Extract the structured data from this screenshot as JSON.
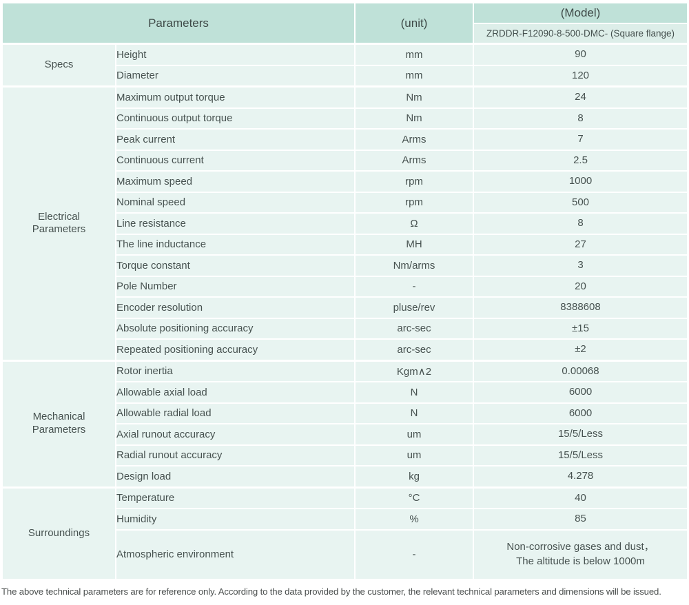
{
  "colors": {
    "header_bg": "#bfe1d8",
    "subheader_bg": "#ddeee9",
    "row_bg": "#e8f4f1",
    "separator": "#ffffff",
    "text": "#475250"
  },
  "table": {
    "header": {
      "parameters_label": "Parameters",
      "unit_label": "(unit)",
      "model_label": "(Model)",
      "model_value": "ZRDDR-F12090-8-500-DMC- (Square flange)"
    },
    "sections": [
      {
        "group": "Specs",
        "rows": [
          {
            "parameter": "Height",
            "unit": "mm",
            "value": "90"
          },
          {
            "parameter": "Diameter",
            "unit": "mm",
            "value": "120"
          }
        ]
      },
      {
        "group": "Electrical\nParameters",
        "rows": [
          {
            "parameter": "Maximum output torque",
            "unit": "Nm",
            "value": "24"
          },
          {
            "parameter": "Continuous output torque",
            "unit": "Nm",
            "value": "8"
          },
          {
            "parameter": "Peak current",
            "unit": "Arms",
            "value": "7"
          },
          {
            "parameter": "Continuous current",
            "unit": "Arms",
            "value": "2.5"
          },
          {
            "parameter": "Maximum speed",
            "unit": "rpm",
            "value": "1000"
          },
          {
            "parameter": "Nominal speed",
            "unit": "rpm",
            "value": "500"
          },
          {
            "parameter": "Line resistance",
            "unit": "Ω",
            "value": "8"
          },
          {
            "parameter": "The line inductance",
            "unit": "MH",
            "value": "27"
          },
          {
            "parameter": "Torque constant",
            "unit": "Nm/arms",
            "value": "3"
          },
          {
            "parameter": "Pole Number",
            "unit": "-",
            "value": "20"
          },
          {
            "parameter": "Encoder resolution",
            "unit": "pluse/rev",
            "value": "8388608"
          },
          {
            "parameter": "Absolute positioning accuracy",
            "unit": "arc-sec",
            "value": "±15"
          },
          {
            "parameter": "Repeated positioning accuracy",
            "unit": "arc-sec",
            "value": "±2"
          }
        ]
      },
      {
        "group": "Mechanical\nParameters",
        "rows": [
          {
            "parameter": "Rotor inertia",
            "unit": "Kgm∧2",
            "value": "0.00068"
          },
          {
            "parameter": "Allowable axial load",
            "unit": "N",
            "value": "6000"
          },
          {
            "parameter": "Allowable radial load",
            "unit": "N",
            "value": "6000"
          },
          {
            "parameter": "Axial runout accuracy",
            "unit": "um",
            "value": "15/5/Less"
          },
          {
            "parameter": "Radial runout accuracy",
            "unit": "um",
            "value": "15/5/Less"
          },
          {
            "parameter": "Design load",
            "unit": "kg",
            "value": "4.278"
          }
        ]
      },
      {
        "group": "Surroundings",
        "rows": [
          {
            "parameter": "Temperature",
            "unit": "°C",
            "value": "40"
          },
          {
            "parameter": "Humidity",
            "unit": "%",
            "value": "85"
          },
          {
            "parameter": "Atmospheric environment",
            "unit": "-",
            "value": "Non-corrosive gases and dust，\nThe altitude is below 1000m",
            "tall": true
          }
        ]
      }
    ],
    "footer_note": "The above technical parameters are for reference only. According to the data provided by the customer, the relevant technical parameters and dimensions will be issued."
  }
}
